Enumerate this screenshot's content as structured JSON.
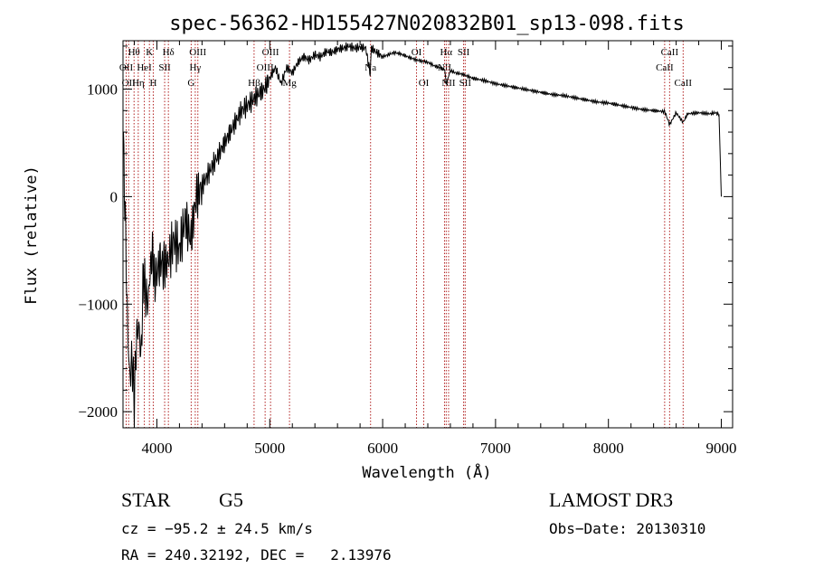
{
  "chart_data": {
    "type": "line",
    "title": "spec-56362-HD155427N020832B01_sp13-098.fits",
    "xlabel": "Wavelength (Å)",
    "ylabel": "Flux (relative)",
    "xlim": [
      3700,
      9100
    ],
    "ylim": [
      -2150,
      1450
    ],
    "x_ticks": [
      4000,
      5000,
      6000,
      7000,
      8000,
      9000
    ],
    "y_ticks": [
      -2000,
      -1000,
      0,
      1000
    ],
    "series": [
      {
        "name": "flux",
        "x": [
          3700,
          3720,
          3740,
          3760,
          3780,
          3800,
          3820,
          3840,
          3860,
          3880,
          3900,
          3920,
          3940,
          3960,
          3980,
          4000,
          4030,
          4060,
          4100,
          4150,
          4200,
          4250,
          4300,
          4350,
          4400,
          4450,
          4500,
          4550,
          4600,
          4650,
          4700,
          4750,
          4800,
          4850,
          4900,
          4950,
          5000,
          5050,
          5100,
          5150,
          5200,
          5250,
          5300,
          5350,
          5400,
          5450,
          5500,
          5550,
          5600,
          5650,
          5700,
          5750,
          5800,
          5850,
          5890,
          5900,
          5950,
          6000,
          6050,
          6100,
          6150,
          6200,
          6250,
          6300,
          6350,
          6400,
          6450,
          6500,
          6550,
          6563,
          6600,
          6650,
          6700,
          6750,
          6800,
          6900,
          7000,
          7100,
          7200,
          7300,
          7400,
          7500,
          7600,
          7700,
          7800,
          7900,
          8000,
          8100,
          8200,
          8300,
          8400,
          8500,
          8542,
          8600,
          8662,
          8700,
          8800,
          8900,
          8950,
          8980,
          9000
        ],
        "y": [
          600,
          -200,
          -1200,
          -1700,
          -1500,
          -1900,
          -1300,
          -1200,
          -1500,
          -700,
          -900,
          -1000,
          -700,
          -500,
          -800,
          -700,
          -600,
          -650,
          -600,
          -400,
          -500,
          -200,
          -400,
          0,
          100,
          200,
          300,
          400,
          500,
          600,
          700,
          800,
          850,
          900,
          950,
          1000,
          1100,
          1200,
          1050,
          1200,
          1150,
          1250,
          1300,
          1270,
          1320,
          1300,
          1350,
          1340,
          1370,
          1380,
          1400,
          1380,
          1390,
          1380,
          1150,
          1380,
          1340,
          1300,
          1320,
          1340,
          1330,
          1310,
          1290,
          1270,
          1260,
          1250,
          1220,
          1200,
          1180,
          1050,
          1170,
          1150,
          1140,
          1120,
          1100,
          1080,
          1050,
          1030,
          1010,
          990,
          970,
          950,
          940,
          920,
          900,
          880,
          870,
          850,
          830,
          810,
          800,
          790,
          670,
          780,
          690,
          770,
          780,
          770,
          780,
          760,
          0
        ]
      }
    ],
    "lines": [
      {
        "wave": 3728,
        "label": "OII",
        "row": 2
      },
      {
        "wave": 3750,
        "label": "OII",
        "row": 3
      },
      {
        "wave": 3798,
        "label": "Hθ",
        "row": 1
      },
      {
        "wave": 3835,
        "label": "Hη",
        "row": 3
      },
      {
        "wave": 3889,
        "label": "HeI",
        "row": 2
      },
      {
        "wave": 3934,
        "label": "K",
        "row": 1
      },
      {
        "wave": 3968,
        "label": "H",
        "row": 3
      },
      {
        "wave": 4069,
        "label": "SII",
        "row": 2
      },
      {
        "wave": 4102,
        "label": "Hδ",
        "row": 1
      },
      {
        "wave": 4304,
        "label": "G",
        "row": 3
      },
      {
        "wave": 4340,
        "label": "Hγ",
        "row": 2
      },
      {
        "wave": 4363,
        "label": "OIII",
        "row": 1
      },
      {
        "wave": 4861,
        "label": "Hβ",
        "row": 3
      },
      {
        "wave": 4959,
        "label": "OIII",
        "row": 2
      },
      {
        "wave": 5007,
        "label": "OIII",
        "row": 1
      },
      {
        "wave": 5175,
        "label": "Mg",
        "row": 3
      },
      {
        "wave": 5893,
        "label": "Na",
        "row": 2
      },
      {
        "wave": 6300,
        "label": "OI",
        "row": 1
      },
      {
        "wave": 6364,
        "label": "OI",
        "row": 3
      },
      {
        "wave": 6548,
        "label": "NII",
        "row": 2
      },
      {
        "wave": 6563,
        "label": "Hα",
        "row": 1
      },
      {
        "wave": 6584,
        "label": "NII",
        "row": 3
      },
      {
        "wave": 6717,
        "label": "SII",
        "row": 1
      },
      {
        "wave": 6731,
        "label": "SII",
        "row": 3
      },
      {
        "wave": 8498,
        "label": "CaII",
        "row": 2
      },
      {
        "wave": 8542,
        "label": "CaII",
        "row": 1
      },
      {
        "wave": 8662,
        "label": "CaII",
        "row": 3
      }
    ]
  },
  "info": {
    "object_class": "STAR",
    "subclass": "G5",
    "survey": "LAMOST DR3",
    "cz": "cz = −95.2 ± 24.5 km/s",
    "obs_date": "Obs−Date: 20130310",
    "coords": "RA = 240.32192, DEC =   2.13976"
  },
  "colors": {
    "line_marker": "#b22222",
    "spectrum": "#000000",
    "axes": "#000000"
  }
}
